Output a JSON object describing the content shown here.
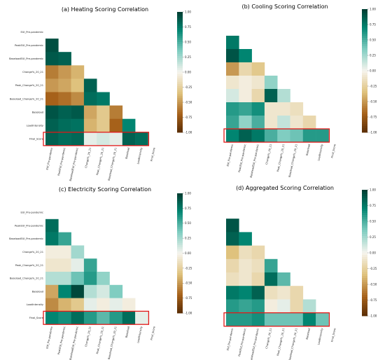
{
  "colors": {
    "negative_end": "#5a2d05",
    "neutral": "#f6f4ee",
    "positive_end": "#003c30",
    "highlight_box": "#e21818"
  },
  "chart_data": [
    {
      "type": "heatmap",
      "title": "(a) Heating Scoring Correlation",
      "labels": [
        "EUI_Pre-pandemic",
        "PeakEUI_Pre-pandemic",
        "BaseloadEUI_Pre-pandemic",
        "Change%_20_21",
        "Peak_Change%_20_21",
        "Baseload_Change%_20_21",
        "Baseload",
        "LoadIntensity",
        "Final_Score"
      ],
      "mask": "upper-triangle-including-diagonal",
      "highlighted_row": "Final_Score",
      "colorbar": {
        "min": -1.0,
        "max": 1.0,
        "ticks": [
          "1.00",
          "0.75",
          "0.50",
          "0.25",
          "0.00",
          "-0.25",
          "-0.50",
          "-0.75",
          "-1.00"
        ]
      },
      "values": [
        [],
        [
          0.92
        ],
        [
          0.88,
          0.85
        ],
        [
          -0.6,
          -0.5,
          -0.4
        ],
        [
          -0.5,
          -0.45,
          -0.35,
          0.85
        ],
        [
          -0.7,
          -0.65,
          -0.55,
          0.8,
          0.75
        ],
        [
          0.9,
          0.85,
          0.88,
          -0.45,
          -0.3,
          -0.6
        ],
        [
          0.85,
          0.8,
          0.78,
          -0.4,
          -0.3,
          -0.7,
          0.7
        ],
        [
          0.85,
          0.8,
          0.82,
          0.05,
          0.1,
          0.05,
          0.85,
          0.8
        ]
      ]
    },
    {
      "type": "heatmap",
      "title": "(b) Cooling Scoring Correlation",
      "labels": [
        "EUI_Pre-pandemic",
        "PeakEUI_Pre-pandemic",
        "BaseloadEUI_Pre-pandemic",
        "Change%_20_21",
        "Peak_Change%_20_21",
        "Baseload_Change%_20_21",
        "Baseload",
        "LoadIntensity",
        "Final_Score"
      ],
      "mask": "upper-triangle-including-diagonal",
      "highlighted_row": "Final_Score",
      "colorbar": {
        "min": -1.0,
        "max": 1.0,
        "ticks": [
          "1.00",
          "0.75",
          "0.50",
          "0.25",
          "0.00",
          "-0.25",
          "-0.50",
          "-0.75",
          "-1.00"
        ]
      },
      "values": [
        [],
        [
          0.75
        ],
        [
          0.9,
          0.7
        ],
        [
          -0.5,
          -0.2,
          -0.3
        ],
        [
          -0.1,
          -0.05,
          -0.1,
          0.3
        ],
        [
          0.1,
          -0.05,
          -0.2,
          0.85,
          0.2
        ],
        [
          0.6,
          0.55,
          0.65,
          -0.1,
          -0.1,
          -0.15
        ],
        [
          0.55,
          0.3,
          0.5,
          -0.1,
          0.15,
          -0.1,
          -0.2
        ],
        [
          0.7,
          0.85,
          0.75,
          0.5,
          0.35,
          0.4,
          0.6,
          0.6
        ]
      ]
    },
    {
      "type": "heatmap",
      "title": "(c) Electricity Scoring Correlation",
      "labels": [
        "EUI_Pre-pandemic",
        "PeakEUI_Pre-pandemic",
        "BaseloadEUI_Pre-pandemic",
        "Change%_20_21",
        "Peak_Change%_20_21",
        "Baseload_Change%_20_21",
        "Baseload",
        "LoadIntensity",
        "Final_Score"
      ],
      "mask": "upper-triangle-including-diagonal",
      "highlighted_row": "Final_Score",
      "colorbar": {
        "min": -1.0,
        "max": 1.0,
        "ticks": [
          "1.00",
          "0.75",
          "0.50",
          "0.25",
          "0.00",
          "-0.25",
          "-0.50",
          "-0.75",
          "-1.00"
        ]
      },
      "values": [
        [],
        [
          0.8
        ],
        [
          0.75,
          0.55
        ],
        [
          -0.05,
          -0.05,
          0.25
        ],
        [
          -0.1,
          -0.1,
          0.05,
          0.55
        ],
        [
          0.2,
          0.2,
          0.4,
          0.6,
          0.3
        ],
        [
          -0.45,
          0.7,
          0.95,
          0.2,
          0.1,
          0.35
        ],
        [
          -0.55,
          -0.4,
          -0.3,
          0.05,
          -0.05,
          0.05,
          -0.05
        ],
        [
          0.7,
          0.65,
          0.8,
          0.6,
          0.45,
          0.6,
          0.8,
          0.05
        ]
      ]
    },
    {
      "type": "heatmap",
      "title": "(d) Aggregated Scoring Correlation",
      "labels": [
        "EUI_Pre-pandemic",
        "PeakEUI_Pre-pandemic",
        "BaseloadEUI_Pre-pandemic",
        "Change%_20_21",
        "Peak_Change%_20_21",
        "Baseload_Change%_20_21",
        "Baseload",
        "LoadIntensity",
        "Final_Score"
      ],
      "mask": "upper-triangle-including-diagonal",
      "highlighted_row": "Final_Score",
      "colorbar": {
        "min": -1.0,
        "max": 1.0,
        "ticks": [
          "1.00",
          "0.75",
          "0.50",
          "0.25",
          "0.00",
          "-0.25",
          "-0.50",
          "-0.75",
          "-1.00"
        ]
      },
      "values": [
        [],
        [
          0.9
        ],
        [
          0.85,
          0.7
        ],
        [
          -0.35,
          -0.15,
          -0.2
        ],
        [
          -0.2,
          -0.1,
          -0.15,
          0.55
        ],
        [
          -0.15,
          -0.1,
          -0.2,
          0.8,
          0.45
        ],
        [
          0.75,
          0.7,
          0.85,
          -0.15,
          -0.1,
          -0.2
        ],
        [
          0.6,
          0.55,
          0.6,
          -0.05,
          0.05,
          -0.2,
          0.2
        ],
        [
          0.6,
          0.6,
          0.65,
          0.4,
          0.4,
          0.4,
          0.7,
          0.4
        ]
      ]
    }
  ]
}
